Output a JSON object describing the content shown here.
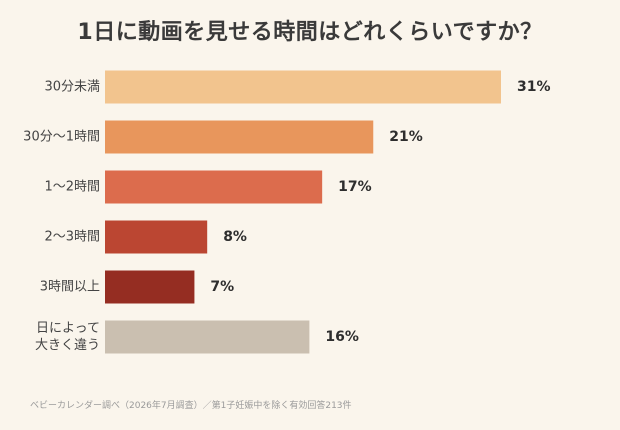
{
  "chart_data": {
    "type": "bar",
    "orientation": "horizontal",
    "title": "1日に動画を見せる時間はどれくらいですか？",
    "categories": [
      "30分未満",
      "30分〜1時間",
      "1〜2時間",
      "2〜3時間",
      "3時間以上",
      "日によって\n大きく違う"
    ],
    "values": [
      31,
      21,
      17,
      8,
      7,
      16
    ],
    "value_labels": [
      "31%",
      "21%",
      "17%",
      "8%",
      "7%",
      "16%"
    ],
    "colors": [
      "#f2c48e",
      "#e8965c",
      "#dc6c4d",
      "#bb4632",
      "#952d22",
      "#cabfb0"
    ],
    "xlim": [
      0,
      31
    ],
    "xlabel": "",
    "ylabel": "",
    "grid": false,
    "legend": "none"
  },
  "footer": {
    "source": "ベビーカレンダー調べ（2026年7月調査）／第1子妊娠中を除く有効回答213件"
  }
}
